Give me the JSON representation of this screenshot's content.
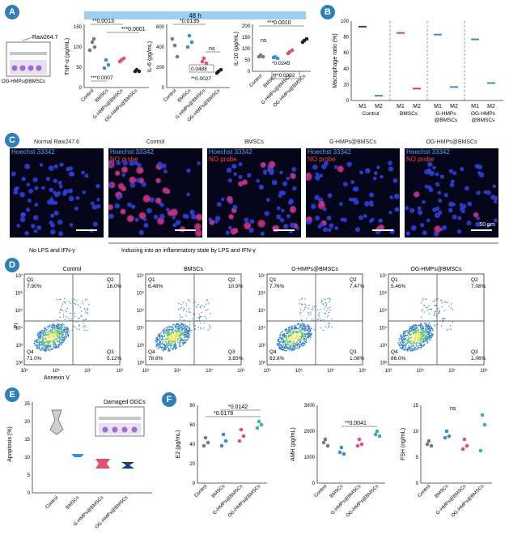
{
  "panels": {
    "A": {
      "badge": "A",
      "banner": "48 h",
      "inset_label": "Raw264.7",
      "inset_bottom": "OG-HMPs@BMSCs",
      "groups": [
        "Control",
        "BMSCs",
        "G-HMPs@BMSCs",
        "OG-HMPs@BMSCs"
      ],
      "tnf": {
        "ylabel": "TNF-α (pg/mL)",
        "ticks": [
          "0",
          "50",
          "100",
          "150"
        ],
        "ann": [
          "**0.0013",
          "***0.0001",
          "***0.0007"
        ]
      },
      "il6": {
        "ylabel": "IL-6 (pg/mL)",
        "ticks": [
          "0",
          "200",
          "400",
          "600"
        ],
        "ann": [
          "*0.0135",
          "ns",
          "0.0488",
          "**0.0027"
        ]
      },
      "il10": {
        "ylabel": "IL-10 (pg/mL)",
        "ticks": [
          "0",
          "50",
          "100",
          "150",
          "200"
        ],
        "ann": [
          "***0.0010",
          "ns",
          "*0.0245",
          "***0.0002"
        ]
      }
    },
    "B": {
      "badge": "B",
      "ylabel": "Macrophage ratio (%)",
      "ticks": [
        "0",
        "20",
        "40",
        "60",
        "80",
        "100"
      ],
      "groups": [
        "Control",
        "BMSCs",
        "G-HMPs\n@BMSCs",
        "OG-HMPs\n@BMSCs"
      ],
      "m_labels": [
        "M1",
        "M2"
      ],
      "chart_data": {
        "type": "scatter",
        "categories": [
          "Control",
          "BMSCs",
          "G-HMPs@BMSCs",
          "OG-HMPs@BMSCs"
        ],
        "series": [
          {
            "name": "M1",
            "values": [
              93,
              85,
              83,
              77
            ]
          },
          {
            "name": "M2",
            "values": [
              6,
              15,
              17,
              22
            ]
          }
        ],
        "ylabel": "Macrophage ratio (%)",
        "ylim": [
          0,
          100
        ]
      }
    },
    "C": {
      "badge": "C",
      "titles": [
        "Normal Raw247.6",
        "Control",
        "BMSCs",
        "G-HMPs@BMSCs",
        "OG-HMPs@BMSCs"
      ],
      "stain1": "Hoechst 33342",
      "stain2": "NO probe",
      "scale": "50 μm",
      "caption_left": "No LPS and IFN-γ",
      "caption_right": "Inducing into an inflammatory state by LPS and IFN-γ"
    },
    "D": {
      "badge": "D",
      "ylabel": "PI",
      "xlabel": "Annexin V",
      "plots": [
        {
          "title": "Control",
          "q": [
            "Q1\n7.90%",
            "Q2\n16.0%",
            "Q4\n71.0%",
            "Q3\n5.12%"
          ]
        },
        {
          "title": "BMSCs",
          "q": [
            "Q1\n6.48%",
            "Q2\n10.9%",
            "Q4\n78.8%",
            "Q3\n3.83%"
          ]
        },
        {
          "title": "G-HMPs@BMSCs",
          "q": [
            "Q1\n7.76%",
            "Q2\n7.47%",
            "Q4\n83.8%",
            "Q3\n1.08%"
          ]
        },
        {
          "title": "OG-HMPs@BMSCs",
          "q": [
            "Q1\n5.46%",
            "Q2\n7.08%",
            "Q4\n86.0%",
            "Q3\n1.06%"
          ]
        }
      ]
    },
    "E": {
      "badge": "E",
      "ylabel": "Apoptosis (%)",
      "ticks": [
        "0",
        "5",
        "10",
        "15",
        "20",
        "25"
      ],
      "groups": [
        "Control",
        "BMSCs",
        "G-HMPs@BMSCs",
        "OG-HMPs@BMSCs"
      ],
      "inset_label": "Damaged OGCs"
    },
    "F": {
      "badge": "F",
      "groups": [
        "Control",
        "BMSCs",
        "G-HMPs@BMSCs",
        "OG-HMPs@BMSCs"
      ],
      "e2": {
        "ylabel": "E2 (pg/mL)",
        "ticks": [
          "0",
          "20",
          "40",
          "60",
          "80"
        ],
        "ann": [
          "*0.0142",
          "*0.0178"
        ]
      },
      "amh": {
        "ylabel": "AMH (pg/mL)",
        "ticks": [
          "0",
          "1000",
          "2000",
          "3000"
        ],
        "ann": [
          "**0.0041"
        ]
      },
      "fsh": {
        "ylabel": "FSH (ng/mL)",
        "ticks": [
          "0",
          "5",
          "10",
          "15"
        ],
        "ann": [
          "ns"
        ]
      }
    }
  },
  "colors": {
    "control": "#7a7a7a",
    "bmscs": "#3a8fd0",
    "ghmps": "#e0516b",
    "oghmps": "#39b3a6",
    "banner": "#9ed0ef",
    "badge": "#2f7fb8"
  }
}
